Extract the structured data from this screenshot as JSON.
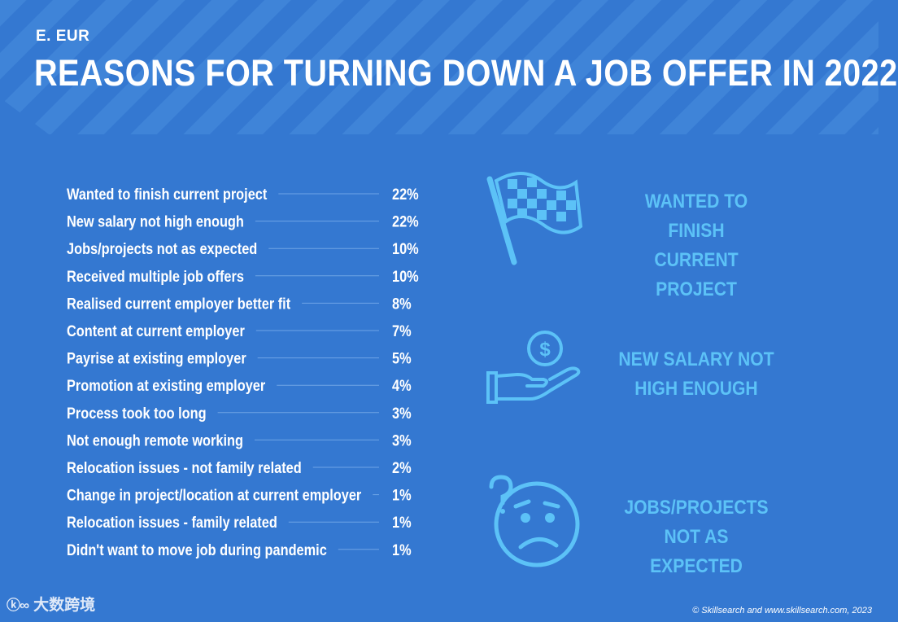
{
  "header": {
    "section_label": "E. EUR",
    "title": "REASONS FOR TURNING DOWN A JOB OFFER IN 2022"
  },
  "chart_data": {
    "type": "table",
    "categories": [
      "Wanted to finish current project",
      "New salary not high enough",
      "Jobs/projects not as expected",
      "Received multiple job offers",
      "Realised current employer better fit",
      "Content at current employer",
      "Payrise at existing employer",
      "Promotion at existing employer",
      "Process took too long",
      "Not enough remote working",
      "Relocation issues - not family related",
      "Change in project/location at current employer",
      "Relocation issues - family related",
      "Didn't want to move job during pandemic"
    ],
    "values": [
      22,
      22,
      10,
      10,
      8,
      7,
      5,
      4,
      3,
      3,
      2,
      1,
      1,
      1
    ],
    "value_labels": [
      "22%",
      "22%",
      "10%",
      "10%",
      "8%",
      "7%",
      "5%",
      "4%",
      "3%",
      "3%",
      "2%",
      "1%",
      "1%",
      "1%"
    ]
  },
  "highlights": [
    {
      "line1": "WANTED TO FINISH",
      "line2": "CURRENT PROJECT",
      "icon": "checkered-flag-icon"
    },
    {
      "line1": "NEW SALARY NOT",
      "line2": "HIGH ENOUGH",
      "icon": "hand-dollar-icon"
    },
    {
      "line1": "JOBS/PROJECTS",
      "line2": "NOT AS EXPECTED",
      "icon": "confused-face-icon"
    }
  ],
  "footer": {
    "logo_text": "大数跨境",
    "credit": "© Skillsearch and www.skillsearch.com, 2023"
  },
  "colors": {
    "background": "#3478d1",
    "accent": "#5cc2f7",
    "text": "#ffffff"
  }
}
